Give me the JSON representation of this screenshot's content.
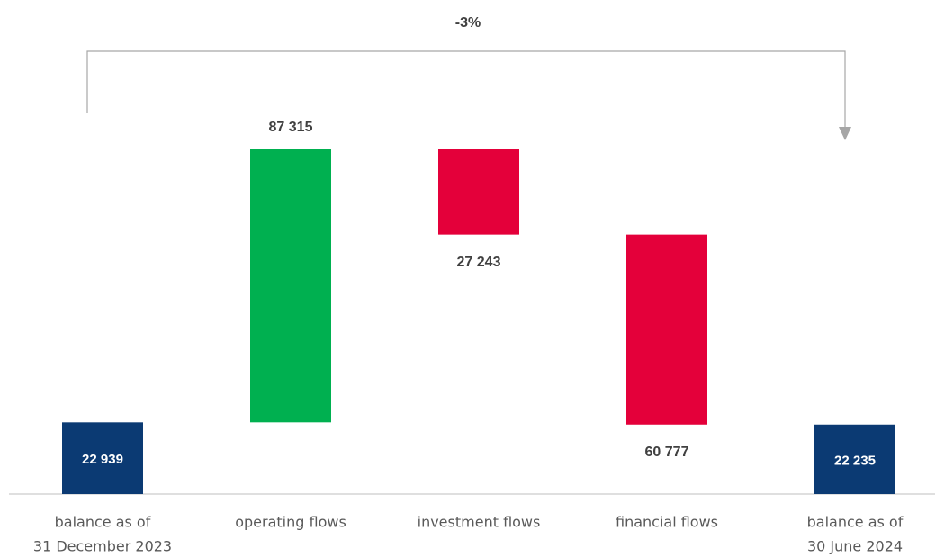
{
  "chart_data": {
    "type": "waterfall",
    "annotation": "-3%",
    "categories": [
      [
        "balance as of",
        "31 December 2023"
      ],
      [
        "operating flows"
      ],
      [
        "investment flows"
      ],
      [
        "financial flows"
      ],
      [
        "balance as of",
        "30 June 2024"
      ]
    ],
    "values": [
      22939,
      87315,
      -27243,
      -60777,
      22235
    ],
    "value_labels": [
      "22 939",
      "87 315",
      "27 243",
      "60 777",
      "22 235"
    ],
    "measure": [
      "absolute",
      "relative",
      "relative",
      "relative",
      "total"
    ],
    "colors": {
      "total": "#0b3a73",
      "increase": "#00b050",
      "decrease": "#e4003a"
    }
  }
}
